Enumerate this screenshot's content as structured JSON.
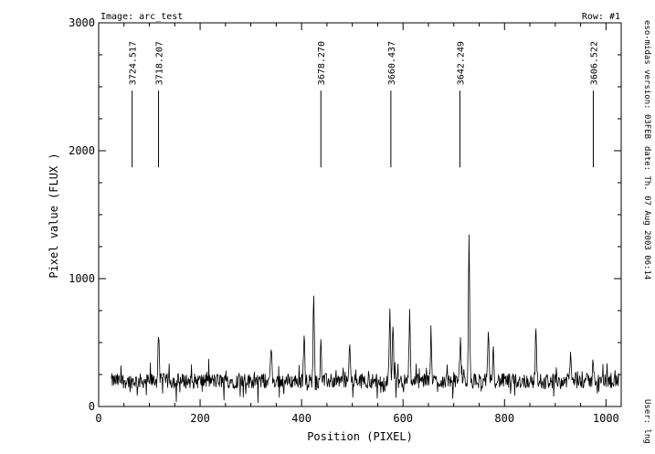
{
  "header": {
    "image_label": "Image: arc_test",
    "row_label": "Row: #1"
  },
  "side_text": {
    "version": "eso-midas version: 03FEB",
    "date": "date: Th. 07 Aug 2003 06:14",
    "user": "User: lng"
  },
  "chart_data": {
    "type": "line",
    "xlabel": "Position (PIXEL)",
    "ylabel": "Pixel value (FLUX )",
    "xlim": [
      0,
      1030
    ],
    "ylim": [
      0,
      3000
    ],
    "x_ticks": [
      0,
      200,
      400,
      600,
      800,
      1000
    ],
    "y_ticks": [
      0,
      1000,
      2000,
      3000
    ],
    "grid": false,
    "line_identifications": [
      {
        "x": 66,
        "label": "3724.517"
      },
      {
        "x": 118,
        "label": "3718.207"
      },
      {
        "x": 438,
        "label": "3678.270"
      },
      {
        "x": 576,
        "label": "3660.437"
      },
      {
        "x": 712,
        "label": "3642.249"
      },
      {
        "x": 975,
        "label": "3606.522"
      }
    ],
    "marker_line_range": [
      1870,
      2470
    ],
    "series": [
      {
        "baseline": 200,
        "noise_amplitude": 60,
        "x_range": [
          25,
          1025
        ],
        "peaks": [
          {
            "x": 118,
            "y": 590
          },
          {
            "x": 340,
            "y": 460
          },
          {
            "x": 405,
            "y": 550
          },
          {
            "x": 424,
            "y": 880
          },
          {
            "x": 438,
            "y": 540
          },
          {
            "x": 495,
            "y": 480
          },
          {
            "x": 574,
            "y": 780
          },
          {
            "x": 580,
            "y": 680
          },
          {
            "x": 613,
            "y": 720
          },
          {
            "x": 655,
            "y": 640
          },
          {
            "x": 713,
            "y": 540
          },
          {
            "x": 730,
            "y": 1290
          },
          {
            "x": 768,
            "y": 560
          },
          {
            "x": 778,
            "y": 530
          },
          {
            "x": 862,
            "y": 600
          },
          {
            "x": 930,
            "y": 420
          },
          {
            "x": 975,
            "y": 370
          }
        ]
      }
    ]
  }
}
